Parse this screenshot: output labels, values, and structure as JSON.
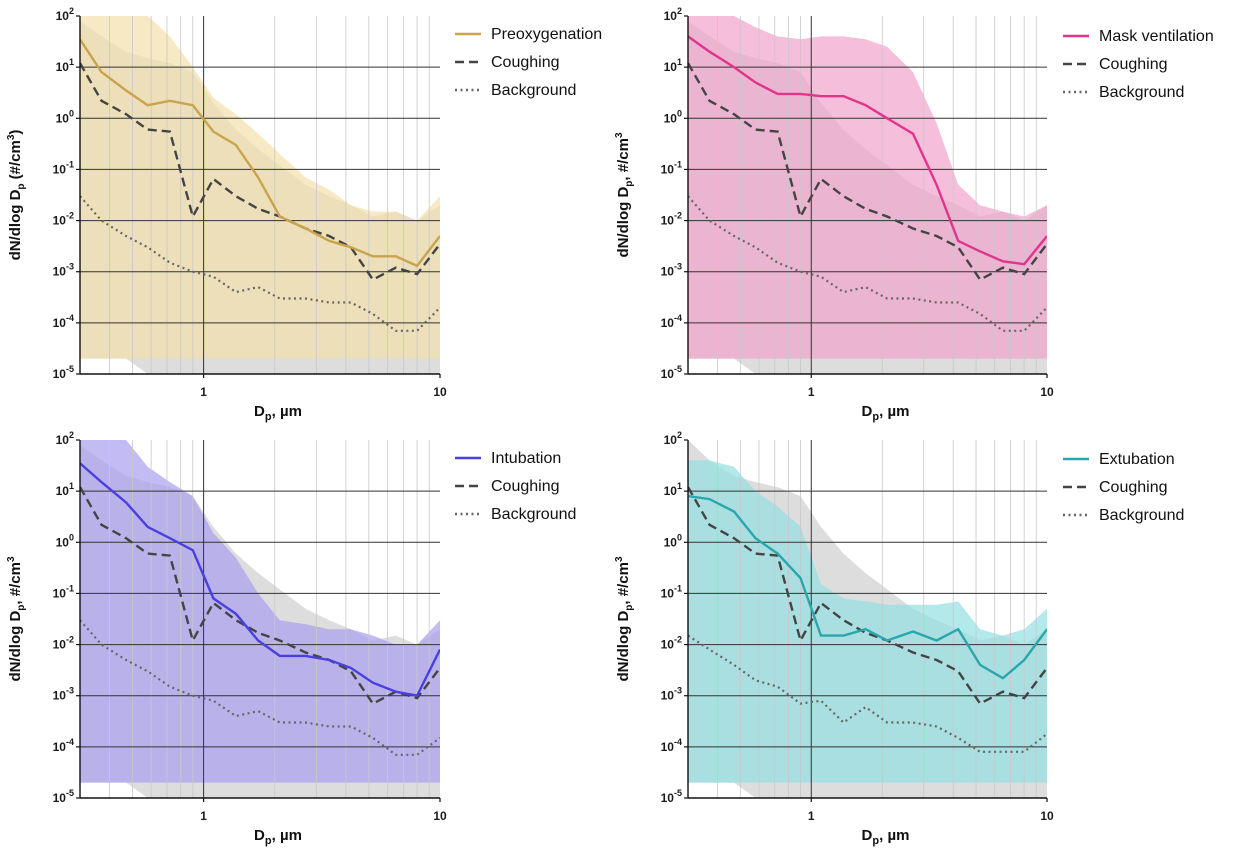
{
  "chart_data": [
    {
      "type": "line",
      "panel": "Preoxygenation",
      "xscale": "log",
      "yscale": "log",
      "xlim": [
        0.3,
        10
      ],
      "ylim": [
        1e-05,
        100
      ],
      "xlabel_main": "D",
      "xlabel_sub": "p",
      "xlabel_rest": ", µm",
      "ylabel_main": "dN/dlog D",
      "ylabel_sub": "p",
      "ylabel_rest": " (#/cm",
      "ylabel_sup": "3",
      "ylabel_end": ")",
      "x_ticks": [
        "1",
        "10"
      ],
      "y_ticks": [
        {
          "base": "10",
          "exp": "-5"
        },
        {
          "base": "10",
          "exp": "-4"
        },
        {
          "base": "10",
          "exp": "-3"
        },
        {
          "base": "10",
          "exp": "-2"
        },
        {
          "base": "10",
          "exp": "-1"
        },
        {
          "base": "10",
          "exp": "0"
        },
        {
          "base": "10",
          "exp": "1"
        },
        {
          "base": "10",
          "exp": "2"
        }
      ],
      "grid": true,
      "legend_position": "right",
      "colors": {
        "main": "#c9a44c",
        "band": "#f2dfaa",
        "coughing": "#444444",
        "background": "#666666",
        "gray_band": "#cfcfcf"
      },
      "x": [
        0.3,
        0.37,
        0.47,
        0.58,
        0.72,
        0.9,
        1.1,
        1.37,
        1.7,
        2.1,
        2.7,
        3.4,
        4.2,
        5.2,
        6.5,
        8.0,
        10.0
      ],
      "series": [
        {
          "name": "Preoxygenation",
          "style": "solid",
          "values": [
            35,
            8,
            3.5,
            1.8,
            2.2,
            1.8,
            0.55,
            0.3,
            0.07,
            0.012,
            0.007,
            0.004,
            0.003,
            0.002,
            0.002,
            0.0013,
            0.005
          ],
          "band_low": [
            2e-05,
            2e-05,
            2e-05,
            2e-05,
            2e-05,
            2e-05,
            2e-05,
            2e-05,
            2e-05,
            2e-05,
            2e-05,
            2e-05,
            2e-05,
            2e-05,
            2e-05,
            2e-05,
            2e-05
          ],
          "band_high": [
            100,
            100,
            100,
            100,
            40,
            10,
            2.5,
            1.2,
            0.5,
            0.2,
            0.07,
            0.04,
            0.02,
            0.015,
            0.015,
            0.01,
            0.03
          ]
        },
        {
          "name": "Coughing",
          "style": "dashed",
          "values": [
            12,
            2.2,
            1.2,
            0.6,
            0.55,
            0.012,
            0.065,
            0.03,
            0.017,
            0.012,
            0.007,
            0.005,
            0.003,
            0.0007,
            0.0012,
            0.0009,
            0.0035
          ],
          "band_low": [
            2e-05,
            2e-05,
            2e-05,
            1e-05,
            1e-05,
            1e-05,
            1e-05,
            1e-05,
            1e-05,
            1e-05,
            1e-05,
            1e-05,
            1e-05,
            1e-05,
            1e-05,
            1e-05,
            1e-05
          ],
          "band_high": [
            80,
            40,
            20,
            15,
            12,
            8,
            2,
            0.6,
            0.25,
            0.12,
            0.05,
            0.03,
            0.02,
            0.012,
            0.015,
            0.01,
            0.02
          ]
        },
        {
          "name": "Background",
          "style": "dotted",
          "values": [
            0.03,
            0.01,
            0.005,
            0.003,
            0.0015,
            0.001,
            0.0008,
            0.0004,
            0.0005,
            0.0003,
            0.0003,
            0.00025,
            0.00025,
            0.00015,
            7e-05,
            7e-05,
            0.0002
          ]
        }
      ]
    },
    {
      "type": "line",
      "panel": "Mask ventilation",
      "xscale": "log",
      "yscale": "log",
      "xlim": [
        0.3,
        10
      ],
      "ylim": [
        1e-05,
        100
      ],
      "xlabel_main": "D",
      "xlabel_sub": "p",
      "xlabel_rest": ", µm",
      "ylabel_main": "dN/dlog D",
      "ylabel_sub": "p",
      "ylabel_rest": ", #/cm",
      "ylabel_sup": "3",
      "ylabel_end": "",
      "x_ticks": [
        "1",
        "10"
      ],
      "y_ticks": [
        {
          "base": "10",
          "exp": "-5"
        },
        {
          "base": "10",
          "exp": "-4"
        },
        {
          "base": "10",
          "exp": "-3"
        },
        {
          "base": "10",
          "exp": "-2"
        },
        {
          "base": "10",
          "exp": "-1"
        },
        {
          "base": "10",
          "exp": "0"
        },
        {
          "base": "10",
          "exp": "1"
        },
        {
          "base": "10",
          "exp": "2"
        }
      ],
      "grid": true,
      "legend_position": "right",
      "colors": {
        "main": "#e0358c",
        "band": "#f1a3cb",
        "coughing": "#444444",
        "background": "#666666",
        "gray_band": "#cfcfcf"
      },
      "x": [
        0.3,
        0.37,
        0.47,
        0.58,
        0.72,
        0.9,
        1.1,
        1.37,
        1.7,
        2.1,
        2.7,
        3.4,
        4.2,
        5.2,
        6.5,
        8.0,
        10.0
      ],
      "series": [
        {
          "name": "Mask ventilation",
          "style": "solid",
          "values": [
            40,
            20,
            10,
            5,
            3,
            3,
            2.7,
            2.7,
            1.8,
            1.0,
            0.5,
            0.05,
            0.004,
            0.0025,
            0.0016,
            0.0014,
            0.005
          ],
          "band_low": [
            2e-05,
            2e-05,
            2e-05,
            2e-05,
            2e-05,
            2e-05,
            2e-05,
            2e-05,
            2e-05,
            2e-05,
            2e-05,
            2e-05,
            2e-05,
            2e-05,
            2e-05,
            2e-05,
            2e-05
          ],
          "band_high": [
            100,
            100,
            100,
            60,
            40,
            35,
            40,
            40,
            35,
            25,
            8,
            0.8,
            0.05,
            0.02,
            0.015,
            0.012,
            0.02
          ]
        },
        {
          "name": "Coughing",
          "style": "dashed",
          "values": [
            12,
            2.2,
            1.2,
            0.6,
            0.55,
            0.012,
            0.065,
            0.03,
            0.017,
            0.012,
            0.007,
            0.005,
            0.003,
            0.0007,
            0.0012,
            0.0009,
            0.0035
          ],
          "band_low": [
            2e-05,
            2e-05,
            2e-05,
            1e-05,
            1e-05,
            1e-05,
            1e-05,
            1e-05,
            1e-05,
            1e-05,
            1e-05,
            1e-05,
            1e-05,
            1e-05,
            1e-05,
            1e-05,
            1e-05
          ],
          "band_high": [
            80,
            40,
            20,
            15,
            12,
            8,
            2,
            0.6,
            0.25,
            0.12,
            0.05,
            0.03,
            0.02,
            0.012,
            0.015,
            0.01,
            0.02
          ]
        },
        {
          "name": "Background",
          "style": "dotted",
          "values": [
            0.03,
            0.01,
            0.005,
            0.003,
            0.0015,
            0.001,
            0.0008,
            0.0004,
            0.0005,
            0.0003,
            0.0003,
            0.00025,
            0.00025,
            0.00015,
            7e-05,
            7e-05,
            0.0002
          ]
        }
      ]
    },
    {
      "type": "line",
      "panel": "Intubation",
      "xscale": "log",
      "yscale": "log",
      "xlim": [
        0.3,
        10
      ],
      "ylim": [
        1e-05,
        100
      ],
      "xlabel_main": "D",
      "xlabel_sub": "p",
      "xlabel_rest": ", µm",
      "ylabel_main": "dN/dlog D",
      "ylabel_sub": "p",
      "ylabel_rest": ", #/cm",
      "ylabel_sup": "3",
      "ylabel_end": "",
      "x_ticks": [
        "1",
        "10"
      ],
      "y_ticks": [
        {
          "base": "10",
          "exp": "-5"
        },
        {
          "base": "10",
          "exp": "-4"
        },
        {
          "base": "10",
          "exp": "-3"
        },
        {
          "base": "10",
          "exp": "-2"
        },
        {
          "base": "10",
          "exp": "-1"
        },
        {
          "base": "10",
          "exp": "0"
        },
        {
          "base": "10",
          "exp": "1"
        },
        {
          "base": "10",
          "exp": "2"
        }
      ],
      "grid": true,
      "legend_position": "right",
      "colors": {
        "main": "#4a3fe0",
        "band": "#a99ff0",
        "coughing": "#444444",
        "background": "#666666",
        "gray_band": "#cfcfcf"
      },
      "x": [
        0.3,
        0.37,
        0.47,
        0.58,
        0.72,
        0.9,
        1.1,
        1.37,
        1.7,
        2.1,
        2.7,
        3.4,
        4.2,
        5.2,
        6.5,
        8.0,
        10.0
      ],
      "series": [
        {
          "name": "Intubation",
          "style": "solid",
          "values": [
            35,
            15,
            6,
            2,
            1.2,
            0.7,
            0.08,
            0.04,
            0.012,
            0.006,
            0.006,
            0.005,
            0.0035,
            0.0018,
            0.0012,
            0.001,
            0.008
          ],
          "band_low": [
            2e-05,
            2e-05,
            2e-05,
            2e-05,
            2e-05,
            2e-05,
            2e-05,
            2e-05,
            2e-05,
            2e-05,
            2e-05,
            2e-05,
            2e-05,
            2e-05,
            2e-05,
            2e-05,
            2e-05
          ],
          "band_high": [
            100,
            100,
            100,
            30,
            15,
            8,
            1.5,
            0.5,
            0.1,
            0.03,
            0.025,
            0.02,
            0.02,
            0.015,
            0.01,
            0.01,
            0.03
          ]
        },
        {
          "name": "Coughing",
          "style": "dashed",
          "values": [
            12,
            2.2,
            1.2,
            0.6,
            0.55,
            0.012,
            0.065,
            0.03,
            0.017,
            0.012,
            0.007,
            0.005,
            0.003,
            0.0007,
            0.0012,
            0.0009,
            0.0035
          ],
          "band_low": [
            2e-05,
            2e-05,
            2e-05,
            1e-05,
            1e-05,
            1e-05,
            1e-05,
            1e-05,
            1e-05,
            1e-05,
            1e-05,
            1e-05,
            1e-05,
            1e-05,
            1e-05,
            1e-05,
            1e-05
          ],
          "band_high": [
            80,
            40,
            20,
            15,
            12,
            8,
            2,
            0.6,
            0.25,
            0.12,
            0.05,
            0.03,
            0.02,
            0.012,
            0.015,
            0.01,
            0.02
          ]
        },
        {
          "name": "Background",
          "style": "dotted",
          "values": [
            0.03,
            0.01,
            0.005,
            0.003,
            0.0015,
            0.001,
            0.0008,
            0.0004,
            0.0005,
            0.0003,
            0.0003,
            0.00025,
            0.00025,
            0.00015,
            7e-05,
            7e-05,
            0.00015
          ]
        }
      ]
    },
    {
      "type": "line",
      "panel": "Extubation",
      "xscale": "log",
      "yscale": "log",
      "xlim": [
        0.3,
        10
      ],
      "ylim": [
        1e-05,
        100
      ],
      "xlabel_main": "D",
      "xlabel_sub": "p",
      "xlabel_rest": ", µm",
      "ylabel_main": "dN/dlog D",
      "ylabel_sub": "p",
      "ylabel_rest": ", #/cm",
      "ylabel_sup": "3",
      "ylabel_end": "",
      "x_ticks": [
        "1",
        "10"
      ],
      "y_ticks": [
        {
          "base": "10",
          "exp": "-5"
        },
        {
          "base": "10",
          "exp": "-4"
        },
        {
          "base": "10",
          "exp": "-3"
        },
        {
          "base": "10",
          "exp": "-2"
        },
        {
          "base": "10",
          "exp": "-1"
        },
        {
          "base": "10",
          "exp": "0"
        },
        {
          "base": "10",
          "exp": "1"
        },
        {
          "base": "10",
          "exp": "2"
        }
      ],
      "grid": true,
      "legend_position": "right",
      "colors": {
        "main": "#2aa6ad",
        "band": "#93dfe3",
        "coughing": "#444444",
        "background": "#666666",
        "gray_band": "#cfcfcf"
      },
      "x": [
        0.3,
        0.37,
        0.47,
        0.58,
        0.72,
        0.9,
        1.1,
        1.37,
        1.7,
        2.1,
        2.7,
        3.4,
        4.2,
        5.2,
        6.5,
        8.0,
        10.0
      ],
      "series": [
        {
          "name": "Extubation",
          "style": "solid",
          "values": [
            8,
            7,
            4,
            1.2,
            0.6,
            0.2,
            0.015,
            0.015,
            0.02,
            0.012,
            0.018,
            0.012,
            0.02,
            0.004,
            0.0022,
            0.005,
            0.02
          ],
          "band_low": [
            2e-05,
            2e-05,
            2e-05,
            2e-05,
            2e-05,
            2e-05,
            2e-05,
            2e-05,
            2e-05,
            2e-05,
            2e-05,
            2e-05,
            2e-05,
            2e-05,
            2e-05,
            2e-05,
            2e-05
          ],
          "band_high": [
            40,
            40,
            30,
            10,
            5,
            2,
            0.15,
            0.08,
            0.07,
            0.06,
            0.06,
            0.06,
            0.07,
            0.02,
            0.015,
            0.02,
            0.05
          ]
        },
        {
          "name": "Coughing",
          "style": "dashed",
          "values": [
            12,
            2.2,
            1.2,
            0.6,
            0.55,
            0.012,
            0.065,
            0.03,
            0.017,
            0.012,
            0.007,
            0.005,
            0.003,
            0.0007,
            0.0012,
            0.0009,
            0.0035
          ],
          "band_low": [
            2e-05,
            2e-05,
            2e-05,
            1e-05,
            1e-05,
            1e-05,
            1e-05,
            1e-05,
            1e-05,
            1e-05,
            1e-05,
            1e-05,
            1e-05,
            1e-05,
            1e-05,
            1e-05,
            1e-05
          ],
          "band_high": [
            100,
            40,
            20,
            15,
            12,
            8,
            2,
            0.6,
            0.25,
            0.12,
            0.05,
            0.03,
            0.02,
            0.012,
            0.015,
            0.01,
            0.02
          ]
        },
        {
          "name": "Background",
          "style": "dotted",
          "values": [
            0.015,
            0.008,
            0.004,
            0.002,
            0.0015,
            0.0007,
            0.0008,
            0.0003,
            0.0006,
            0.0003,
            0.0003,
            0.00025,
            0.00015,
            8e-05,
            8e-05,
            8e-05,
            0.00018
          ]
        }
      ]
    }
  ]
}
